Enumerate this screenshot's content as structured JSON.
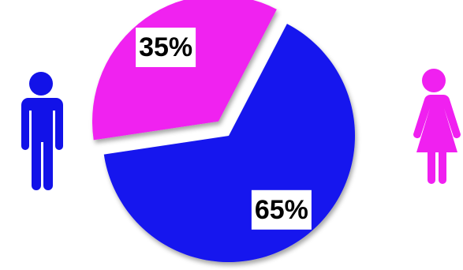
{
  "chart_data": {
    "type": "pie",
    "values": [
      65,
      35
    ],
    "value_labels": [
      "65%",
      "35%"
    ],
    "colors": [
      "#1414ee",
      "#f020f0"
    ],
    "startangle": 27.5,
    "explode": [
      0,
      0.14
    ]
  }
}
